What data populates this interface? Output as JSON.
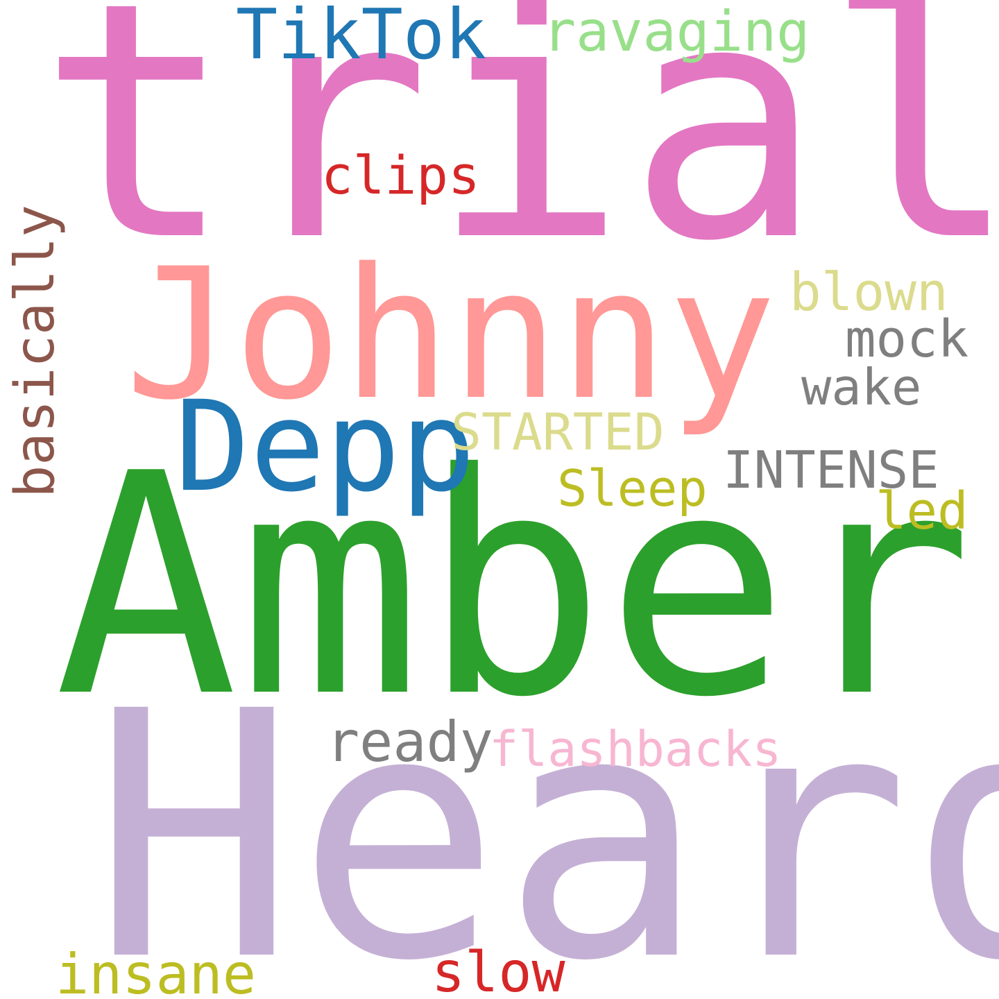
{
  "words": [
    {
      "text": "trial",
      "color": "#e377c2"
    },
    {
      "text": "Amber",
      "color": "#2ca02c"
    },
    {
      "text": "Heard",
      "color": "#c5b0d5"
    },
    {
      "text": "Johnny",
      "color": "#ff9896"
    },
    {
      "text": "Depp",
      "color": "#1f77b4"
    },
    {
      "text": "TikTok",
      "color": "#1f77b4"
    },
    {
      "text": "ravaging",
      "color": "#98df8a"
    },
    {
      "text": "clips",
      "color": "#d62728"
    },
    {
      "text": "blown",
      "color": "#dbdb8d"
    },
    {
      "text": "mock",
      "color": "#7f7f7f"
    },
    {
      "text": "wake",
      "color": "#7f7f7f"
    },
    {
      "text": "STARTED",
      "color": "#dbdb8d"
    },
    {
      "text": "INTENSE",
      "color": "#7f7f7f"
    },
    {
      "text": "Sleep",
      "color": "#bcbd22"
    },
    {
      "text": "led",
      "color": "#bcbd22"
    },
    {
      "text": "basically",
      "color": "#8c564b"
    },
    {
      "text": "ready",
      "color": "#7f7f7f"
    },
    {
      "text": "flashbacks",
      "color": "#f7b6d2"
    },
    {
      "text": "insane",
      "color": "#bcbd22"
    },
    {
      "text": "slow",
      "color": "#d62728"
    }
  ],
  "background_color": "#ffffff"
}
